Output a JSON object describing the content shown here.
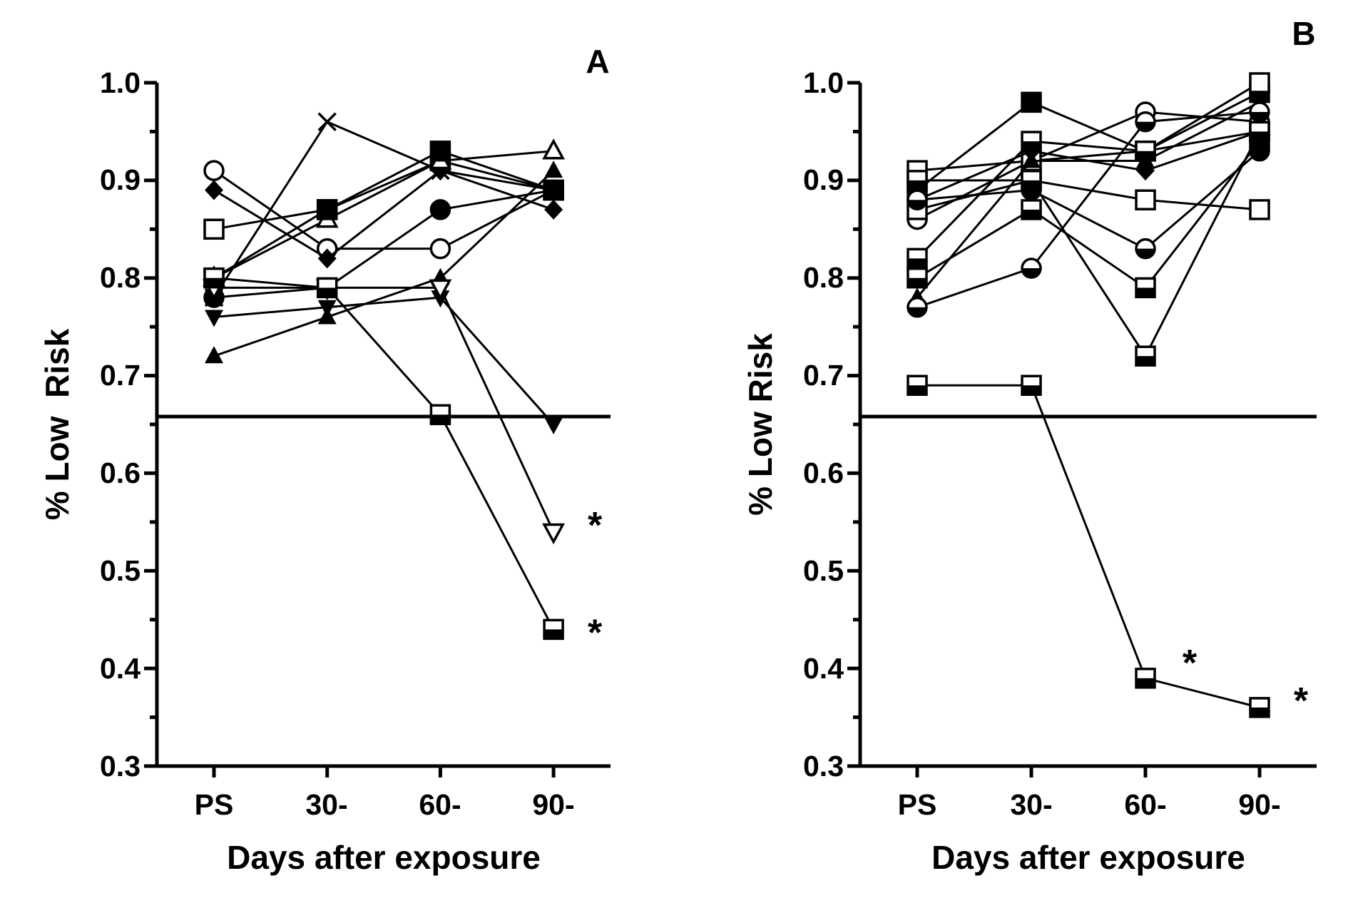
{
  "chart_data": [
    {
      "type": "line",
      "panel": "A",
      "panel_label": "A",
      "xlabel": "Days after exposure",
      "ylabel": "% Low  Risk",
      "categories": [
        "PS",
        "30-",
        "60-",
        "90-"
      ],
      "ylim": [
        0.3,
        1.0
      ],
      "yticks": [
        "0.3",
        "0.4",
        "0.5",
        "0.6",
        "0.7",
        "0.8",
        "0.9",
        "1.0"
      ],
      "ytick_values": [
        0.3,
        0.4,
        0.5,
        0.6,
        0.7,
        0.8,
        0.9,
        1.0
      ],
      "threshold": 0.66,
      "series": [
        {
          "name": "open circle A",
          "marker": "circle-open",
          "values": [
            0.91,
            0.83,
            0.83,
            0.89
          ]
        },
        {
          "name": "filled diamond",
          "marker": "diamond-filled",
          "values": [
            0.89,
            0.82,
            0.91,
            0.87
          ]
        },
        {
          "name": "open square A",
          "marker": "square-open",
          "values": [
            0.85,
            0.87,
            0.92,
            0.89
          ]
        },
        {
          "name": "cross",
          "marker": "x",
          "values": [
            0.78,
            0.96,
            0.91,
            0.89
          ]
        },
        {
          "name": "open triangle up",
          "marker": "triangle-up-open",
          "values": [
            0.8,
            0.86,
            0.92,
            0.93
          ]
        },
        {
          "name": "filled square",
          "marker": "square-filled",
          "values": [
            0.8,
            0.87,
            0.93,
            0.89
          ]
        },
        {
          "name": "filled circle",
          "marker": "circle-filled",
          "values": [
            0.78,
            0.79,
            0.87,
            0.89
          ]
        },
        {
          "name": "filled triangle up",
          "marker": "triangle-up-filled",
          "values": [
            0.72,
            0.76,
            0.8,
            0.91
          ]
        },
        {
          "name": "filled triangle down",
          "marker": "triangle-down-filled",
          "values": [
            0.76,
            0.77,
            0.78,
            0.65
          ]
        },
        {
          "name": "open triangle down",
          "marker": "triangle-down-open",
          "values": [
            0.79,
            0.79,
            0.79,
            0.54
          ]
        },
        {
          "name": "half-filled square A",
          "marker": "square-half",
          "values": [
            0.8,
            0.79,
            0.66,
            0.44
          ]
        }
      ],
      "annotations": [
        {
          "text": "*",
          "x": "90-",
          "y": 0.55
        },
        {
          "text": "*",
          "x": "90-",
          "y": 0.44
        }
      ]
    },
    {
      "type": "line",
      "panel": "B",
      "panel_label": "B",
      "xlabel": "Days after exposure",
      "ylabel": "% Low Risk",
      "categories": [
        "PS",
        "30-",
        "60-",
        "90-"
      ],
      "ylim": [
        0.3,
        1.0
      ],
      "yticks": [
        "0.3",
        "0.4",
        "0.5",
        "0.6",
        "0.7",
        "0.8",
        "0.9",
        "1.0"
      ],
      "ytick_values": [
        0.3,
        0.4,
        0.5,
        0.6,
        0.7,
        0.8,
        0.9,
        1.0
      ],
      "threshold": 0.66,
      "series": [
        {
          "name": "filled square B",
          "marker": "square-filled",
          "values": [
            0.89,
            0.98,
            0.93,
            0.99
          ]
        },
        {
          "name": "open circle B",
          "marker": "circle-open",
          "values": [
            0.86,
            0.92,
            0.97,
            0.96
          ]
        },
        {
          "name": "open square B1",
          "marker": "square-open",
          "values": [
            0.91,
            0.92,
            0.93,
            1.0
          ]
        },
        {
          "name": "filled diamond B",
          "marker": "diamond-filled",
          "values": [
            0.88,
            0.93,
            0.91,
            0.95
          ]
        },
        {
          "name": "filled triangle up B",
          "marker": "triangle-up-filled",
          "values": [
            0.78,
            0.92,
            0.92,
            0.98
          ]
        },
        {
          "name": "half circle B",
          "marker": "circle-half",
          "values": [
            0.77,
            0.81,
            0.96,
            0.97
          ]
        },
        {
          "name": "half square B1",
          "marker": "square-half",
          "values": [
            0.82,
            0.94,
            0.93,
            0.95
          ]
        },
        {
          "name": "open square B2",
          "marker": "square-open",
          "values": [
            0.87,
            0.9,
            0.88,
            0.87
          ]
        },
        {
          "name": "half circle B2",
          "marker": "circle-half",
          "values": [
            0.88,
            0.89,
            0.83,
            0.93
          ]
        },
        {
          "name": "half square B2",
          "marker": "square-half",
          "values": [
            0.8,
            0.87,
            0.79,
            0.94
          ]
        },
        {
          "name": "half square B3",
          "marker": "square-half",
          "values": [
            0.9,
            0.9,
            0.72,
            0.95
          ]
        },
        {
          "name": "half square low",
          "marker": "square-half",
          "values": [
            0.69,
            0.69,
            0.39,
            0.36
          ]
        }
      ],
      "annotations": [
        {
          "text": "*",
          "x": "60-",
          "y": 0.4
        },
        {
          "text": "*",
          "x": "90-",
          "y": 0.37
        }
      ]
    }
  ]
}
